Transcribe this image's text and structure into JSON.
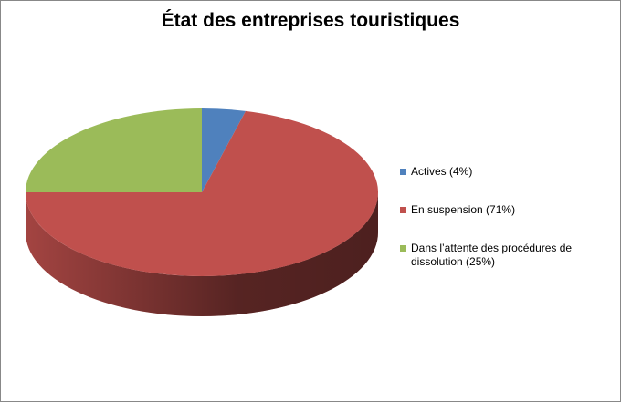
{
  "chart_data": {
    "type": "pie",
    "title": "État des entreprises touristiques",
    "categories": [
      "Actives (4%)",
      "En suspension (71%)",
      "Dans l’attente des procédures de dissolution (25%)"
    ],
    "values": [
      4,
      71,
      25
    ],
    "colors": [
      "#4f81bd",
      "#c0504d",
      "#9bbb59"
    ]
  }
}
